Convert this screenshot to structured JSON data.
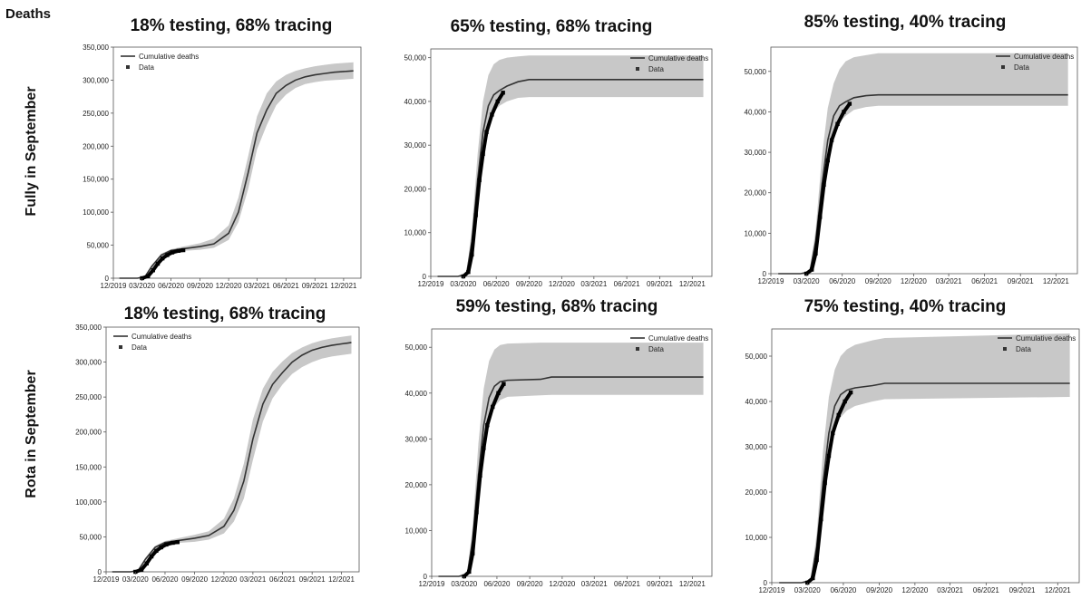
{
  "header": {
    "label": "Deaths"
  },
  "rows": [
    {
      "label": "Fully  in September"
    },
    {
      "label": "Rota in September"
    }
  ],
  "chart_data": [
    {
      "type": "line",
      "title": "18% testing, 68% tracing",
      "xlabel": "",
      "ylabel": "",
      "x_ticks": [
        "12/2019",
        "03/2020",
        "06/2020",
        "09/2020",
        "12/2020",
        "03/2021",
        "06/2021",
        "09/2021",
        "12/2021"
      ],
      "y_ticks": [
        "0",
        "50,000",
        "100,000",
        "150,000",
        "200,000",
        "250,000",
        "300,000",
        "350,000"
      ],
      "ylim": [
        0,
        350000
      ],
      "legend": {
        "placement": "top-left",
        "entries": [
          "Cumulative deaths",
          "Data"
        ]
      },
      "series": [
        {
          "name": "Cumulative deaths",
          "x": [
            "2019-12-20",
            "2020-02-15",
            "2020-03-10",
            "2020-04-01",
            "2020-05-01",
            "2020-06-01",
            "2020-07-01",
            "2020-09-01",
            "2020-10-15",
            "2020-12-01",
            "2021-01-01",
            "2021-02-01",
            "2021-03-01",
            "2021-04-01",
            "2021-05-01",
            "2021-06-01",
            "2021-07-01",
            "2021-08-01",
            "2021-09-01",
            "2021-10-01",
            "2021-11-01",
            "2021-12-01",
            "2022-01-01"
          ],
          "values": [
            0,
            0,
            2000,
            18000,
            35000,
            42000,
            44000,
            48000,
            52000,
            68000,
            100000,
            160000,
            220000,
            255000,
            280000,
            292000,
            300000,
            305000,
            308000,
            310000,
            312000,
            313000,
            314000
          ],
          "band_lower": [
            0,
            0,
            1500,
            15000,
            32000,
            40000,
            41000,
            43000,
            46000,
            58000,
            85000,
            135000,
            195000,
            232000,
            262000,
            278000,
            288000,
            294000,
            297000,
            299000,
            300000,
            301000,
            302000
          ],
          "band_upper": [
            0,
            0,
            2500,
            20000,
            37000,
            44000,
            47000,
            53000,
            60000,
            80000,
            122000,
            185000,
            245000,
            280000,
            298000,
            308000,
            314000,
            318000,
            321000,
            323000,
            325000,
            326000,
            327000
          ]
        },
        {
          "name": "Data",
          "x": [
            "2020-03-01",
            "2020-03-20",
            "2020-04-05",
            "2020-04-20",
            "2020-05-05",
            "2020-05-20",
            "2020-06-05",
            "2020-06-25",
            "2020-07-10"
          ],
          "values": [
            0,
            3000,
            12000,
            22000,
            30000,
            35000,
            39000,
            41500,
            42500
          ]
        }
      ]
    },
    {
      "type": "line",
      "title": "65% testing, 68% tracing",
      "xlabel": "",
      "ylabel": "",
      "x_ticks": [
        "12/2019",
        "03/2020",
        "06/2020",
        "09/2020",
        "12/2020",
        "03/2021",
        "06/2021",
        "09/2021",
        "12/2021"
      ],
      "y_ticks": [
        "0",
        "10,000",
        "20,000",
        "30,000",
        "40,000",
        "50,000"
      ],
      "ylim": [
        0,
        52000
      ],
      "legend": {
        "placement": "top-right",
        "entries": [
          "Cumulative deaths",
          "Data"
        ]
      },
      "series": [
        {
          "name": "Cumulative deaths",
          "x": [
            "2019-12-20",
            "2020-02-15",
            "2020-03-10",
            "2020-03-25",
            "2020-04-10",
            "2020-04-25",
            "2020-05-10",
            "2020-05-25",
            "2020-06-10",
            "2020-07-01",
            "2020-08-01",
            "2020-09-01",
            "2022-01-01"
          ],
          "values": [
            0,
            0,
            500,
            8000,
            22000,
            33000,
            39000,
            41500,
            42500,
            43500,
            44500,
            45000,
            45000
          ],
          "band_lower": [
            0,
            0,
            300,
            6000,
            18000,
            28000,
            34000,
            37500,
            39000,
            40000,
            40800,
            41000,
            41000
          ],
          "band_upper": [
            0,
            0,
            800,
            11000,
            28000,
            40000,
            46000,
            48500,
            49500,
            50000,
            50300,
            50500,
            50500
          ]
        },
        {
          "name": "Data",
          "x": [
            "2020-03-01",
            "2020-03-15",
            "2020-03-25",
            "2020-04-05",
            "2020-04-15",
            "2020-04-25",
            "2020-05-05",
            "2020-05-20",
            "2020-06-05",
            "2020-06-20"
          ],
          "values": [
            0,
            1000,
            5000,
            14000,
            22000,
            28000,
            33000,
            37000,
            40000,
            42000
          ]
        }
      ]
    },
    {
      "type": "line",
      "title": "85% testing, 40% tracing",
      "xlabel": "",
      "ylabel": "",
      "x_ticks": [
        "12/2019",
        "03/2020",
        "06/2020",
        "09/2020",
        "12/2020",
        "03/2021",
        "06/2021",
        "09/2021",
        "12/2021"
      ],
      "y_ticks": [
        "0",
        "10,000",
        "20,000",
        "30,000",
        "40,000",
        "50,000"
      ],
      "ylim": [
        0,
        56000
      ],
      "legend": {
        "placement": "top-right",
        "entries": [
          "Cumulative deaths",
          "Data"
        ]
      },
      "series": [
        {
          "name": "Cumulative deaths",
          "x": [
            "2019-12-20",
            "2020-02-15",
            "2020-03-10",
            "2020-03-25",
            "2020-04-10",
            "2020-04-25",
            "2020-05-10",
            "2020-05-25",
            "2020-06-10",
            "2020-07-01",
            "2020-08-01",
            "2020-09-01",
            "2022-01-01"
          ],
          "values": [
            0,
            0,
            500,
            8000,
            22000,
            33000,
            39000,
            41500,
            42500,
            43500,
            44000,
            44200,
            44200
          ],
          "band_lower": [
            0,
            0,
            300,
            6000,
            18000,
            28000,
            34000,
            37500,
            39000,
            40500,
            41200,
            41500,
            41500
          ],
          "band_upper": [
            0,
            0,
            800,
            11000,
            29000,
            41000,
            47000,
            50500,
            52500,
            53500,
            54000,
            54500,
            54500
          ]
        },
        {
          "name": "Data",
          "x": [
            "2020-03-01",
            "2020-03-15",
            "2020-03-25",
            "2020-04-05",
            "2020-04-15",
            "2020-04-25",
            "2020-05-05",
            "2020-05-20",
            "2020-06-05",
            "2020-06-20"
          ],
          "values": [
            0,
            1000,
            5000,
            14000,
            22000,
            28000,
            33000,
            37000,
            40000,
            42000
          ]
        }
      ]
    },
    {
      "type": "line",
      "title": "18% testing, 68% tracing",
      "xlabel": "",
      "ylabel": "",
      "x_ticks": [
        "12/2019",
        "03/2020",
        "06/2020",
        "09/2020",
        "12/2020",
        "03/2021",
        "06/2021",
        "09/2021",
        "12/2021"
      ],
      "y_ticks": [
        "0",
        "50,000",
        "100,000",
        "150,000",
        "200,000",
        "250,000",
        "300,000",
        "350,000"
      ],
      "ylim": [
        0,
        350000
      ],
      "legend": {
        "placement": "top-left",
        "entries": [
          "Cumulative deaths",
          "Data"
        ]
      },
      "series": [
        {
          "name": "Cumulative deaths",
          "x": [
            "2019-12-20",
            "2020-02-15",
            "2020-03-10",
            "2020-04-01",
            "2020-05-01",
            "2020-06-01",
            "2020-07-01",
            "2020-09-01",
            "2020-10-15",
            "2020-12-01",
            "2021-01-01",
            "2021-02-01",
            "2021-03-01",
            "2021-04-01",
            "2021-05-01",
            "2021-06-01",
            "2021-07-01",
            "2021-08-01",
            "2021-09-01",
            "2021-10-01",
            "2021-11-01",
            "2021-12-01",
            "2022-01-01"
          ],
          "values": [
            0,
            0,
            2000,
            18000,
            35000,
            42000,
            44000,
            48000,
            52000,
            65000,
            88000,
            130000,
            190000,
            240000,
            268000,
            285000,
            300000,
            310000,
            317000,
            321000,
            324000,
            326000,
            328000
          ],
          "band_lower": [
            0,
            0,
            1500,
            15000,
            32000,
            40000,
            41000,
            43000,
            46000,
            55000,
            72000,
            105000,
            160000,
            215000,
            248000,
            268000,
            283000,
            293000,
            300000,
            305000,
            308000,
            310000,
            312000
          ],
          "band_upper": [
            0,
            0,
            2500,
            20000,
            37000,
            44000,
            47000,
            53000,
            58000,
            76000,
            105000,
            155000,
            218000,
            262000,
            286000,
            301000,
            313000,
            321000,
            327000,
            331000,
            334000,
            336000,
            338000
          ]
        },
        {
          "name": "Data",
          "x": [
            "2020-03-01",
            "2020-03-20",
            "2020-04-05",
            "2020-04-20",
            "2020-05-05",
            "2020-05-20",
            "2020-06-05",
            "2020-06-25",
            "2020-07-10"
          ],
          "values": [
            0,
            3000,
            12000,
            22000,
            30000,
            35000,
            39000,
            41500,
            42500
          ]
        }
      ]
    },
    {
      "type": "line",
      "title": "59% testing, 68% tracing",
      "xlabel": "",
      "ylabel": "",
      "x_ticks": [
        "12/2019",
        "03/2020",
        "06/2020",
        "09/2020",
        "12/2020",
        "03/2021",
        "06/2021",
        "09/2021",
        "12/2021"
      ],
      "y_ticks": [
        "0",
        "10,000",
        "20,000",
        "30,000",
        "40,000",
        "50,000"
      ],
      "ylim": [
        0,
        54000
      ],
      "legend": {
        "placement": "top-right",
        "entries": [
          "Cumulative deaths",
          "Data"
        ]
      },
      "series": [
        {
          "name": "Cumulative deaths",
          "x": [
            "2019-12-20",
            "2020-02-15",
            "2020-03-10",
            "2020-03-25",
            "2020-04-10",
            "2020-04-25",
            "2020-05-10",
            "2020-05-25",
            "2020-06-10",
            "2020-07-01",
            "2020-10-01",
            "2020-11-01",
            "2022-01-01"
          ],
          "values": [
            0,
            0,
            500,
            8000,
            22000,
            33000,
            39000,
            41500,
            42500,
            42800,
            43000,
            43500,
            43500
          ],
          "band_lower": [
            0,
            0,
            300,
            6000,
            18000,
            28000,
            34000,
            37000,
            38500,
            39200,
            39500,
            39600,
            39600
          ],
          "band_upper": [
            0,
            0,
            800,
            11000,
            29000,
            41000,
            47000,
            49500,
            50500,
            50800,
            51000,
            51000,
            51000
          ]
        },
        {
          "name": "Data",
          "x": [
            "2020-03-01",
            "2020-03-15",
            "2020-03-25",
            "2020-04-05",
            "2020-04-15",
            "2020-04-25",
            "2020-05-05",
            "2020-05-20",
            "2020-06-05",
            "2020-06-20"
          ],
          "values": [
            0,
            1000,
            5000,
            14000,
            22000,
            28000,
            33000,
            37000,
            40000,
            42000
          ]
        }
      ]
    },
    {
      "type": "line",
      "title": "75% testing, 40% tracing",
      "xlabel": "",
      "ylabel": "",
      "x_ticks": [
        "12/2019",
        "03/2020",
        "06/2020",
        "09/2020",
        "12/2020",
        "03/2021",
        "06/2021",
        "09/2021",
        "12/2021"
      ],
      "y_ticks": [
        "0",
        "10,000",
        "20,000",
        "30,000",
        "40,000",
        "50,000"
      ],
      "ylim": [
        0,
        56000
      ],
      "legend": {
        "placement": "top-right",
        "entries": [
          "Cumulative deaths",
          "Data"
        ]
      },
      "series": [
        {
          "name": "Cumulative deaths",
          "x": [
            "2019-12-20",
            "2020-02-15",
            "2020-03-10",
            "2020-03-25",
            "2020-04-10",
            "2020-04-25",
            "2020-05-10",
            "2020-05-25",
            "2020-06-10",
            "2020-07-01",
            "2020-08-15",
            "2020-09-15",
            "2022-01-01"
          ],
          "values": [
            0,
            0,
            500,
            8000,
            22000,
            33000,
            39000,
            41500,
            42500,
            43000,
            43500,
            44000,
            44000
          ],
          "band_lower": [
            0,
            0,
            300,
            6000,
            18000,
            28000,
            33500,
            36500,
            38000,
            39000,
            40000,
            40500,
            41000
          ],
          "band_upper": [
            0,
            0,
            800,
            11000,
            29000,
            41000,
            47000,
            50000,
            51500,
            52500,
            53500,
            54000,
            55000
          ]
        },
        {
          "name": "Data",
          "x": [
            "2020-03-01",
            "2020-03-15",
            "2020-03-25",
            "2020-04-05",
            "2020-04-15",
            "2020-04-25",
            "2020-05-05",
            "2020-05-20",
            "2020-06-05",
            "2020-06-20"
          ],
          "values": [
            0,
            1000,
            5000,
            14000,
            22000,
            28000,
            33000,
            37000,
            40000,
            42000
          ]
        }
      ]
    }
  ]
}
